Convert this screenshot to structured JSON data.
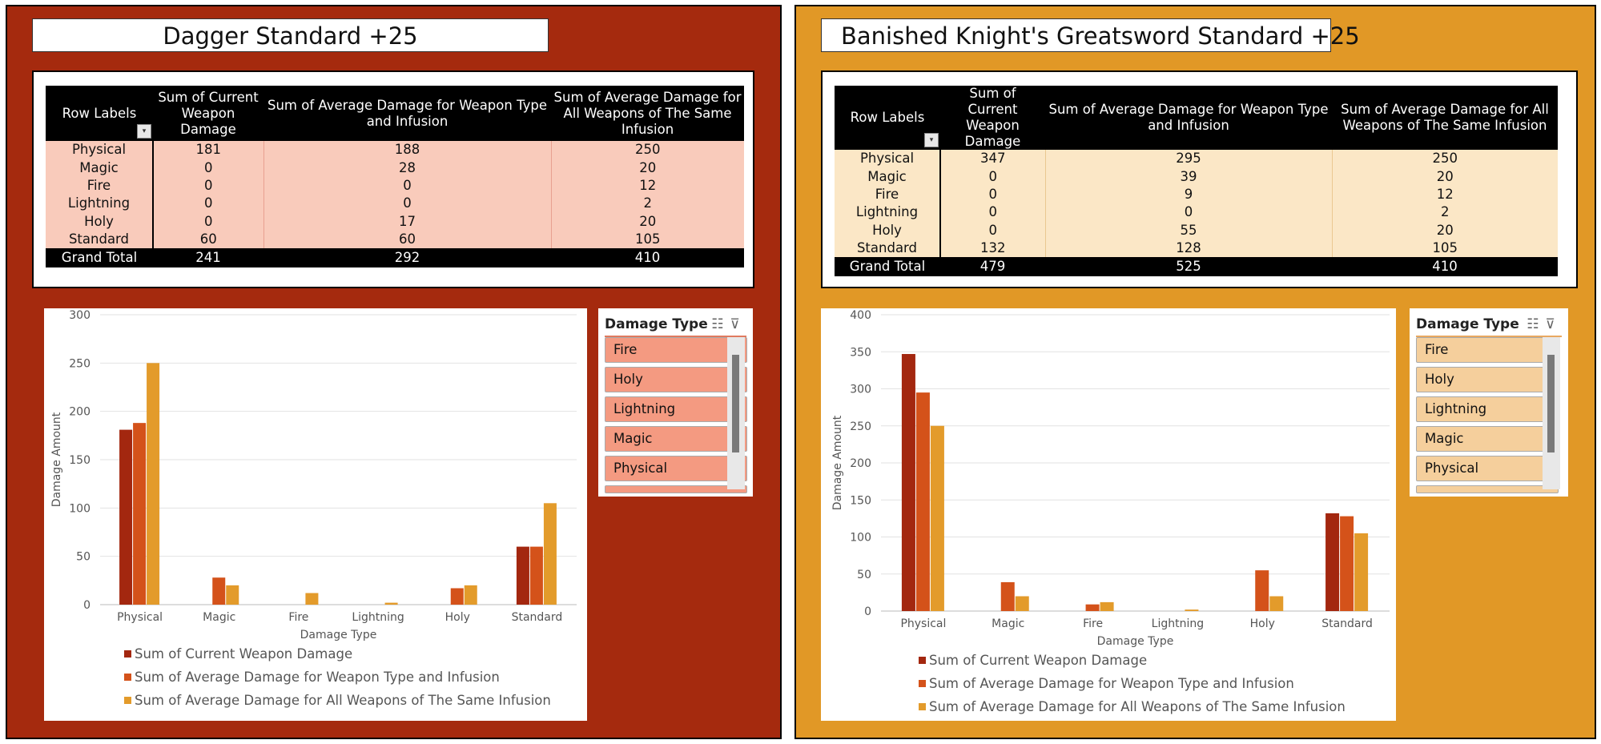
{
  "colors": {
    "series": [
      "#a3270f",
      "#d4521a",
      "#e39b2b"
    ],
    "left_bg": "#a52a0e",
    "right_bg": "#e19826",
    "left_row": "#f9cbbb",
    "right_row": "#fbe7c6",
    "left_slicer_item": "#f49a81",
    "right_slicer_item": "#f5cf9c"
  },
  "columns": [
    "Row Labels",
    "Sum of Current Weapon Damage",
    "Sum of Average Damage for Weapon Type and Infusion",
    "Sum of Average Damage for All Weapons of The Same Infusion"
  ],
  "left": {
    "title": "Dagger Standard +25",
    "rows": [
      {
        "label": "Physical",
        "v": [
          181,
          188,
          250
        ]
      },
      {
        "label": "Magic",
        "v": [
          0,
          28,
          20
        ]
      },
      {
        "label": "Fire",
        "v": [
          0,
          0,
          12
        ]
      },
      {
        "label": "Lightning",
        "v": [
          0,
          0,
          2
        ]
      },
      {
        "label": "Holy",
        "v": [
          0,
          17,
          20
        ]
      },
      {
        "label": "Standard",
        "v": [
          60,
          60,
          105
        ]
      }
    ],
    "total": {
      "label": "Grand Total",
      "v": [
        241,
        292,
        410
      ]
    },
    "slicer": {
      "title": "Damage Type",
      "items": [
        "Fire",
        "Holy",
        "Lightning",
        "Magic",
        "Physical"
      ]
    }
  },
  "right": {
    "title": "Banished Knight's Greatsword Standard +25",
    "rows": [
      {
        "label": "Physical",
        "v": [
          347,
          295,
          250
        ]
      },
      {
        "label": "Magic",
        "v": [
          0,
          39,
          20
        ]
      },
      {
        "label": "Fire",
        "v": [
          0,
          9,
          12
        ]
      },
      {
        "label": "Lightning",
        "v": [
          0,
          0,
          2
        ]
      },
      {
        "label": "Holy",
        "v": [
          0,
          55,
          20
        ]
      },
      {
        "label": "Standard",
        "v": [
          132,
          128,
          105
        ]
      }
    ],
    "total": {
      "label": "Grand Total",
      "v": [
        479,
        525,
        410
      ]
    },
    "slicer": {
      "title": "Damage Type",
      "items": [
        "Fire",
        "Holy",
        "Lightning",
        "Magic",
        "Physical"
      ]
    }
  },
  "chart_data": [
    {
      "type": "bar",
      "categories": [
        "Physical",
        "Magic",
        "Fire",
        "Lightning",
        "Holy",
        "Standard"
      ],
      "series": [
        {
          "name": "Sum of Current Weapon Damage",
          "values": [
            181,
            0,
            0,
            0,
            0,
            60
          ]
        },
        {
          "name": "Sum of Average Damage for Weapon Type and Infusion",
          "values": [
            188,
            28,
            0,
            0,
            17,
            60
          ]
        },
        {
          "name": "Sum of Average Damage for All Weapons of The Same Infusion",
          "values": [
            250,
            20,
            12,
            2,
            20,
            105
          ]
        }
      ],
      "xlabel": "Damage Type",
      "ylabel": "Damage Amount",
      "ylim": [
        0,
        300
      ],
      "yticks": [
        0,
        50,
        100,
        150,
        200,
        250,
        300
      ],
      "grid": true,
      "legend": "bottom"
    },
    {
      "type": "bar",
      "categories": [
        "Physical",
        "Magic",
        "Fire",
        "Lightning",
        "Holy",
        "Standard"
      ],
      "series": [
        {
          "name": "Sum of Current Weapon Damage",
          "values": [
            347,
            0,
            0,
            0,
            0,
            132
          ]
        },
        {
          "name": "Sum of Average Damage for Weapon Type and Infusion",
          "values": [
            295,
            39,
            9,
            0,
            55,
            128
          ]
        },
        {
          "name": "Sum of Average Damage for All Weapons of The Same Infusion",
          "values": [
            250,
            20,
            12,
            2,
            20,
            105
          ]
        }
      ],
      "xlabel": "Damage Type",
      "ylabel": "Damage Amount",
      "ylim": [
        0,
        400
      ],
      "yticks": [
        0,
        50,
        100,
        150,
        200,
        250,
        300,
        350,
        400
      ],
      "grid": true,
      "legend": "bottom"
    }
  ]
}
